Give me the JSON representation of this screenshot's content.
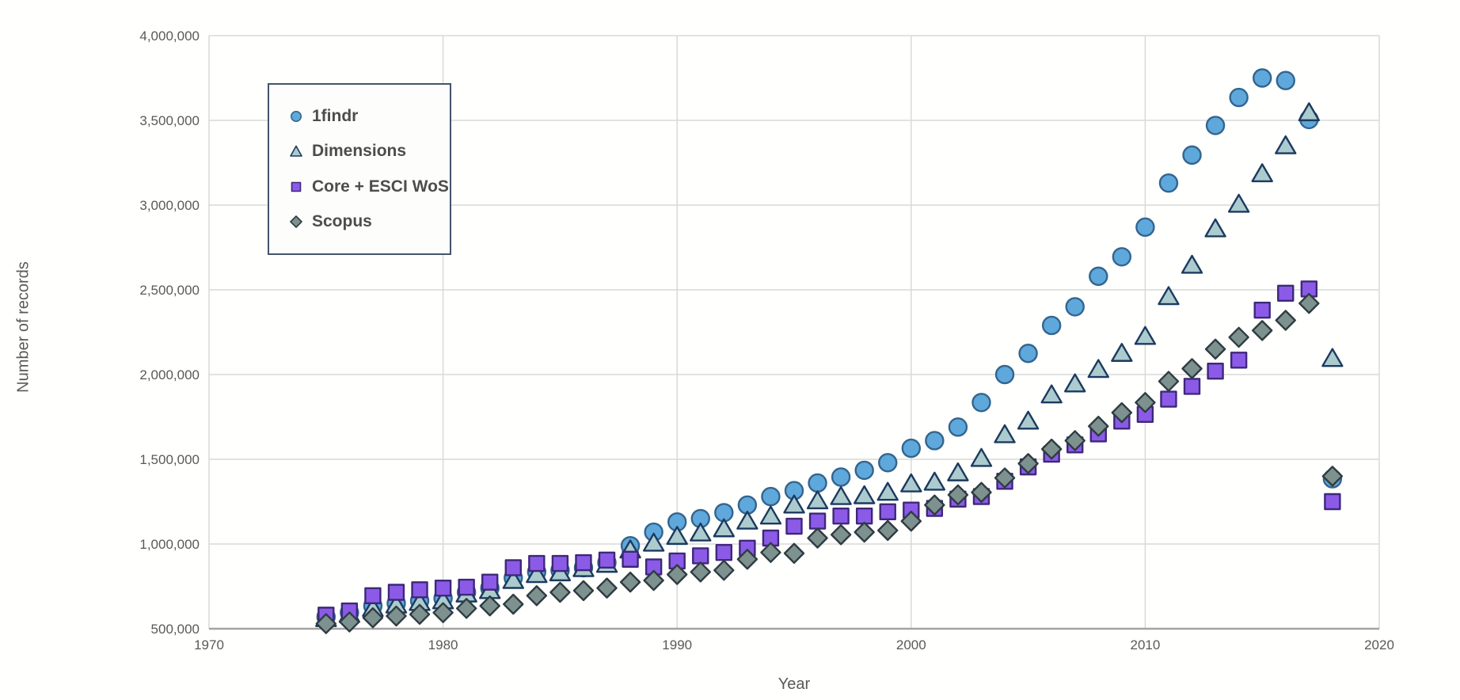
{
  "page": {
    "background": "#ffffff"
  },
  "colors": {
    "gridline": "#D9D9D9",
    "axis_line": "#A3A3A3",
    "tick_label": "#595959",
    "axis_title": "#595959",
    "legend_border": "#44546A",
    "legend_text": "#4D4D4D"
  },
  "chart_data": {
    "type": "scatter",
    "title": "",
    "xlabel": "Year",
    "ylabel": "Number of records",
    "xlim": [
      1970,
      2020
    ],
    "ylim": [
      500000,
      4000000
    ],
    "x_ticks": [
      1970,
      1980,
      1990,
      2000,
      2010,
      2020
    ],
    "y_ticks": [
      500000,
      1000000,
      1500000,
      2000000,
      2500000,
      3000000,
      3500000,
      4000000
    ],
    "grid": true,
    "legend_position": "top-left",
    "x": [
      1975,
      1976,
      1977,
      1978,
      1979,
      1980,
      1981,
      1982,
      1983,
      1984,
      1985,
      1986,
      1987,
      1988,
      1989,
      1990,
      1991,
      1992,
      1993,
      1994,
      1995,
      1996,
      1997,
      1998,
      1999,
      2000,
      2001,
      2002,
      2003,
      2004,
      2005,
      2006,
      2007,
      2008,
      2009,
      2010,
      2011,
      2012,
      2013,
      2014,
      2015,
      2016,
      2017,
      2018
    ],
    "series": [
      {
        "name": "1findr",
        "marker": "circle",
        "fill": "#5FA8DC",
        "stroke": "#33658D",
        "values": [
          570000,
          595000,
          635000,
          650000,
          665000,
          680000,
          715000,
          740000,
          800000,
          835000,
          845000,
          860000,
          890000,
          990000,
          1070000,
          1130000,
          1150000,
          1185000,
          1230000,
          1280000,
          1315000,
          1360000,
          1395000,
          1435000,
          1480000,
          1565000,
          1610000,
          1690000,
          1835000,
          2000000,
          2125000,
          2290000,
          2400000,
          2580000,
          2695000,
          2870000,
          3130000,
          3295000,
          3470000,
          3635000,
          3750000,
          3735000,
          3505000,
          1385000
        ]
      },
      {
        "name": "Dimensions",
        "marker": "triangle",
        "fill": "#ABCBCE",
        "stroke": "#1C3A5E",
        "values": [
          560000,
          585000,
          620000,
          640000,
          655000,
          665000,
          705000,
          725000,
          785000,
          820000,
          830000,
          855000,
          880000,
          965000,
          1005000,
          1045000,
          1065000,
          1090000,
          1135000,
          1165000,
          1230000,
          1255000,
          1280000,
          1285000,
          1305000,
          1355000,
          1365000,
          1420000,
          1505000,
          1645000,
          1725000,
          1880000,
          1945000,
          2030000,
          2125000,
          2225000,
          2460000,
          2645000,
          2860000,
          3005000,
          3185000,
          3350000,
          3545000,
          2095000
        ]
      },
      {
        "name": "Core + ESCI WoS",
        "marker": "square",
        "fill": "#8B5BE8",
        "stroke": "#3E2878",
        "values": [
          580000,
          605000,
          695000,
          715000,
          730000,
          740000,
          745000,
          775000,
          860000,
          885000,
          885000,
          890000,
          905000,
          910000,
          865000,
          900000,
          930000,
          950000,
          975000,
          1035000,
          1105000,
          1135000,
          1165000,
          1165000,
          1190000,
          1200000,
          1210000,
          1265000,
          1280000,
          1370000,
          1455000,
          1530000,
          1585000,
          1650000,
          1725000,
          1765000,
          1855000,
          1930000,
          2020000,
          2085000,
          2380000,
          2480000,
          2505000,
          1250000
        ]
      },
      {
        "name": "Scopus",
        "marker": "diamond",
        "fill": "#7D928F",
        "stroke": "#2F3C42",
        "values": [
          530000,
          540000,
          565000,
          575000,
          585000,
          595000,
          620000,
          635000,
          645000,
          695000,
          715000,
          725000,
          740000,
          775000,
          785000,
          820000,
          835000,
          845000,
          910000,
          950000,
          945000,
          1035000,
          1055000,
          1070000,
          1080000,
          1135000,
          1230000,
          1290000,
          1305000,
          1390000,
          1475000,
          1560000,
          1610000,
          1695000,
          1775000,
          1835000,
          1960000,
          2035000,
          2150000,
          2220000,
          2260000,
          2320000,
          2420000,
          1400000
        ]
      }
    ]
  }
}
